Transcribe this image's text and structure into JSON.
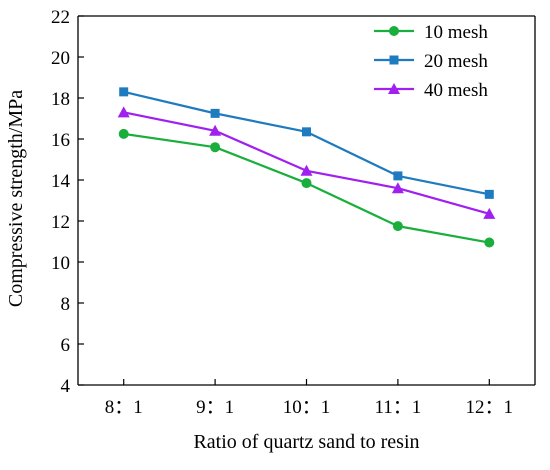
{
  "chart_data": {
    "type": "line",
    "title": "",
    "xlabel": "Ratio of quartz sand to resin",
    "ylabel": "Compressive strength/MPa",
    "categories": [
      "8：1",
      "9：1",
      "10：1",
      "11：1",
      "12：1"
    ],
    "ylim": [
      4,
      22
    ],
    "yticks": [
      4,
      6,
      8,
      10,
      12,
      14,
      16,
      18,
      20,
      22
    ],
    "grid": false,
    "legend_position": "top-right",
    "series": [
      {
        "name": "10 mesh",
        "color": "#1aaf3c",
        "marker": "circle",
        "values": [
          16.25,
          15.6,
          13.85,
          11.75,
          10.95
        ]
      },
      {
        "name": "20 mesh",
        "color": "#1f7bbf",
        "marker": "square",
        "values": [
          18.3,
          17.25,
          16.35,
          14.2,
          13.3
        ]
      },
      {
        "name": "40 mesh",
        "color": "#a020f0",
        "marker": "triangle",
        "values": [
          17.3,
          16.4,
          14.45,
          13.6,
          12.35
        ]
      }
    ]
  }
}
